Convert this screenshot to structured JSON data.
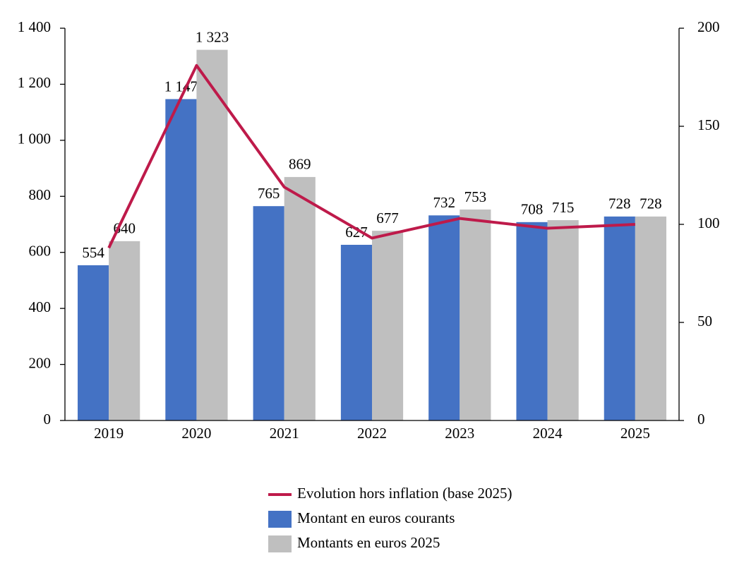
{
  "chart_data": {
    "type": "bar",
    "categories": [
      "2019",
      "2020",
      "2021",
      "2022",
      "2023",
      "2024",
      "2025"
    ],
    "series": [
      {
        "name": "Montant en euros courants",
        "color": "#4472c4",
        "values": [
          554,
          1147,
          765,
          627,
          732,
          708,
          728
        ],
        "value_labels": [
          "554",
          "1 147",
          "765",
          "627",
          "732",
          "708",
          "728"
        ]
      },
      {
        "name": "Montants en euros 2025",
        "color": "#bfbfbf",
        "values": [
          640,
          1323,
          869,
          677,
          753,
          715,
          728
        ],
        "value_labels": [
          "640",
          "1 323",
          "869",
          "677",
          "753",
          "715",
          "728"
        ]
      },
      {
        "name": "Evolution hors inflation (base 2025)",
        "color": "#be1a4a",
        "type": "line",
        "axis": "y2",
        "values": [
          88,
          181,
          119,
          93,
          103,
          98,
          100
        ]
      }
    ],
    "ylim": [
      0,
      1400
    ],
    "yticks": [
      0,
      200,
      400,
      600,
      800,
      {
        "value": 1000,
        "label": "1 000"
      },
      {
        "value": 1200,
        "label": "1 200"
      },
      {
        "value": 1400,
        "label": "1 400"
      }
    ],
    "y2lim": [
      0,
      200
    ],
    "y2ticks": [
      0,
      50,
      100,
      150,
      200
    ],
    "grid": false,
    "legend": "bottom"
  }
}
